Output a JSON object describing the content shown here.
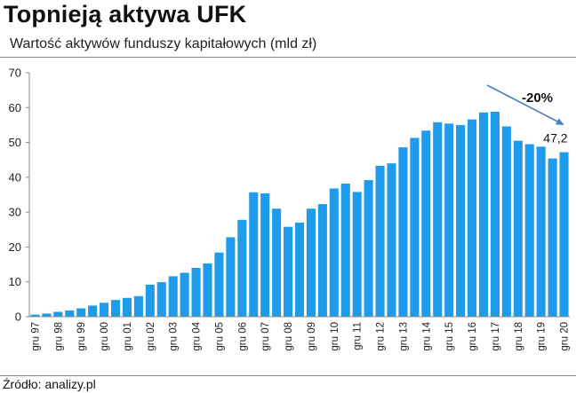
{
  "header": {
    "title": "Topnieją aktywa UFK",
    "subtitle": "Wartość aktywów funduszy kapitałowych (mld zł)"
  },
  "footer": {
    "source": "Źródło: analizy.pl"
  },
  "colors": {
    "bar": "#1E9BEA",
    "arrow": "#4A7FC1",
    "axis": "#8a8a8a"
  },
  "chart_data": {
    "type": "bar",
    "ylim": [
      0,
      70
    ],
    "yticks": [
      0,
      10,
      20,
      30,
      40,
      50,
      60,
      70
    ],
    "grid": false,
    "tick_labels": [
      "gru 97",
      "gru 98",
      "gru 99",
      "gru 00",
      "gru 01",
      "gru 02",
      "gru 03",
      "gru 04",
      "gru 05",
      "gru 06",
      "gru 07",
      "gru 08",
      "gru 09",
      "gru 10",
      "gru 11",
      "gru 12",
      "gru 13",
      "gru 14",
      "gru 15",
      "gru 16",
      "gru 17",
      "gru 18",
      "gru 19",
      "gru 20"
    ],
    "values": [
      0.6,
      0.9,
      1.4,
      1.8,
      2.4,
      3.2,
      4.0,
      4.8,
      5.4,
      5.9,
      9.2,
      9.9,
      11.6,
      12.6,
      14.0,
      15.3,
      18.4,
      22.8,
      27.8,
      35.7,
      35.4,
      31.0,
      25.8,
      27.0,
      31.0,
      32.3,
      36.8,
      38.2,
      35.8,
      39.2,
      43.3,
      44.0,
      48.6,
      51.3,
      53.4,
      55.8,
      55.4,
      55.0,
      56.6,
      58.6,
      58.8,
      54.6,
      50.5,
      49.5,
      48.8,
      45.4,
      47.2
    ],
    "annotations": [
      {
        "text": "-20%",
        "kind": "arrow-label"
      },
      {
        "text": "47,2",
        "kind": "value-label"
      }
    ]
  }
}
